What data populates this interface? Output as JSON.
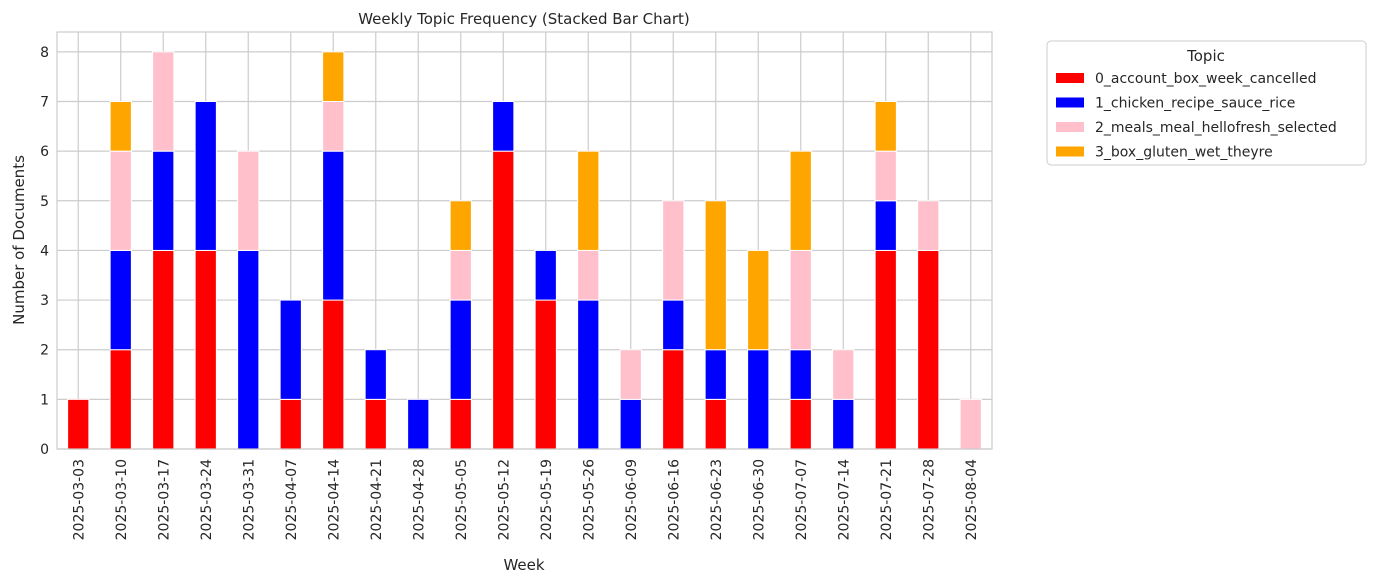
{
  "chart_data": {
    "type": "bar",
    "stacked": true,
    "title": "Weekly Topic Frequency (Stacked Bar Chart)",
    "xlabel": "Week",
    "ylabel": "Number of Documents",
    "ylim": [
      0,
      8.4
    ],
    "yticks": [
      0,
      1,
      2,
      3,
      4,
      5,
      6,
      7,
      8
    ],
    "grid": true,
    "legend_title": "Topic",
    "legend_position": "outside-top-right",
    "categories": [
      "2025-03-03",
      "2025-03-10",
      "2025-03-17",
      "2025-03-24",
      "2025-03-31",
      "2025-04-07",
      "2025-04-14",
      "2025-04-21",
      "2025-04-28",
      "2025-05-05",
      "2025-05-12",
      "2025-05-19",
      "2025-05-26",
      "2025-06-09",
      "2025-06-16",
      "2025-06-23",
      "2025-06-30",
      "2025-07-07",
      "2025-07-14",
      "2025-07-21",
      "2025-07-28",
      "2025-08-04"
    ],
    "series": [
      {
        "name": "0_account_box_week_cancelled",
        "color": "#ff0000",
        "values": [
          1,
          2,
          4,
          4,
          0,
          1,
          3,
          1,
          0,
          1,
          6,
          3,
          0,
          0,
          2,
          1,
          0,
          1,
          0,
          4,
          4,
          0
        ]
      },
      {
        "name": "1_chicken_recipe_sauce_rice",
        "color": "#0000ff",
        "values": [
          0,
          2,
          2,
          3,
          4,
          2,
          3,
          1,
          1,
          2,
          1,
          1,
          3,
          1,
          1,
          1,
          2,
          1,
          1,
          1,
          0,
          0
        ]
      },
      {
        "name": "2_meals_meal_hellofresh_selected",
        "color": "#ffc0cb",
        "values": [
          0,
          2,
          2,
          0,
          2,
          0,
          1,
          0,
          0,
          1,
          0,
          0,
          1,
          1,
          2,
          0,
          0,
          2,
          1,
          1,
          1,
          1
        ]
      },
      {
        "name": "3_box_gluten_wet_theyre",
        "color": "#ffa500",
        "values": [
          0,
          1,
          0,
          0,
          0,
          0,
          1,
          0,
          0,
          1,
          0,
          0,
          2,
          0,
          0,
          3,
          2,
          2,
          0,
          1,
          0,
          0
        ]
      }
    ]
  }
}
